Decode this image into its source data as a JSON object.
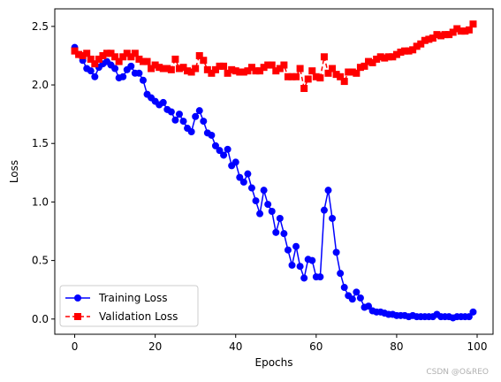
{
  "chart_data": {
    "type": "line",
    "title": "",
    "xlabel": "Epochs",
    "ylabel": "Loss",
    "xlim": [
      -4.95,
      103.95
    ],
    "ylim": [
      -0.13,
      2.65
    ],
    "xticks": [
      0,
      20,
      40,
      60,
      80,
      100
    ],
    "yticks": [
      0.0,
      0.5,
      1.0,
      1.5,
      2.0,
      2.5
    ],
    "xtick_labels": [
      "0",
      "20",
      "40",
      "60",
      "80",
      "100"
    ],
    "ytick_labels": [
      "0.0",
      "0.5",
      "1.0",
      "1.5",
      "2.0",
      "2.5"
    ],
    "grid": false,
    "legend_position": "lower-left",
    "series": [
      {
        "name": "Training Loss",
        "color": "#0000ff",
        "marker": "circle",
        "linestyle": "solid",
        "values": [
          2.32,
          2.26,
          2.21,
          2.14,
          2.12,
          2.07,
          2.15,
          2.18,
          2.2,
          2.17,
          2.14,
          2.06,
          2.07,
          2.13,
          2.16,
          2.1,
          2.1,
          2.04,
          1.92,
          1.89,
          1.86,
          1.83,
          1.85,
          1.79,
          1.77,
          1.7,
          1.75,
          1.69,
          1.63,
          1.6,
          1.73,
          1.78,
          1.69,
          1.59,
          1.57,
          1.48,
          1.44,
          1.4,
          1.45,
          1.31,
          1.34,
          1.21,
          1.17,
          1.24,
          1.12,
          1.01,
          0.9,
          1.1,
          0.98,
          0.92,
          0.74,
          0.86,
          0.73,
          0.59,
          0.46,
          0.62,
          0.45,
          0.35,
          0.51,
          0.5,
          0.36,
          0.36,
          0.93,
          1.1,
          0.86,
          0.57,
          0.39,
          0.27,
          0.2,
          0.17,
          0.23,
          0.18,
          0.1,
          0.11,
          0.07,
          0.06,
          0.06,
          0.05,
          0.04,
          0.04,
          0.03,
          0.03,
          0.03,
          0.02,
          0.03,
          0.02,
          0.02,
          0.02,
          0.02,
          0.02,
          0.04,
          0.02,
          0.02,
          0.02,
          0.01,
          0.02,
          0.02,
          0.02,
          0.02,
          0.06
        ]
      },
      {
        "name": "Validation Loss",
        "color": "#ff0000",
        "marker": "square",
        "linestyle": "dashed",
        "values": [
          2.29,
          2.26,
          2.25,
          2.27,
          2.22,
          2.18,
          2.22,
          2.25,
          2.27,
          2.27,
          2.24,
          2.2,
          2.24,
          2.27,
          2.24,
          2.27,
          2.22,
          2.2,
          2.2,
          2.14,
          2.17,
          2.15,
          2.14,
          2.14,
          2.13,
          2.22,
          2.14,
          2.15,
          2.12,
          2.11,
          2.14,
          2.25,
          2.21,
          2.13,
          2.1,
          2.13,
          2.16,
          2.16,
          2.1,
          2.13,
          2.12,
          2.11,
          2.11,
          2.12,
          2.15,
          2.12,
          2.12,
          2.15,
          2.17,
          2.17,
          2.12,
          2.14,
          2.17,
          2.07,
          2.07,
          2.07,
          2.14,
          1.97,
          2.05,
          2.12,
          2.07,
          2.06,
          2.24,
          2.1,
          2.14,
          2.09,
          2.07,
          2.03,
          2.11,
          2.11,
          2.1,
          2.15,
          2.16,
          2.2,
          2.19,
          2.22,
          2.24,
          2.23,
          2.24,
          2.24,
          2.26,
          2.28,
          2.29,
          2.29,
          2.3,
          2.33,
          2.35,
          2.38,
          2.39,
          2.4,
          2.43,
          2.42,
          2.43,
          2.43,
          2.45,
          2.48,
          2.46,
          2.46,
          2.47,
          2.52
        ]
      }
    ]
  },
  "watermark": "CSDN @O&REO"
}
